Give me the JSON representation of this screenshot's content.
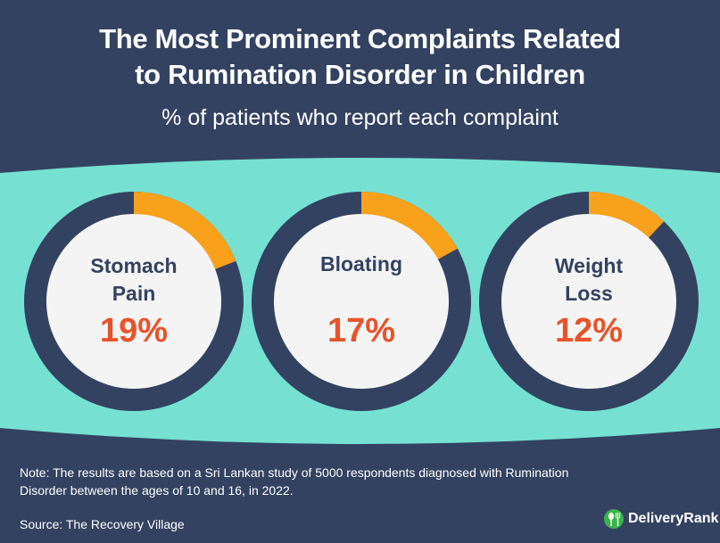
{
  "header": {
    "title_line1": "The Most Prominent Complaints Related",
    "title_line2": "to Rumination Disorder in Children",
    "subtitle": "% of patients who report each complaint"
  },
  "chart_data": {
    "type": "pie",
    "subtype": "donut",
    "categories": [
      "Stomach Pain",
      "Bloating",
      "Weight Loss"
    ],
    "values": [
      19,
      17,
      12
    ],
    "labels": [
      "19%",
      "17%",
      "12%"
    ],
    "unit": "%",
    "colors": {
      "highlight": "#f9a11b",
      "remainder": "#334260",
      "value_text": "#e8532b",
      "center": "#f4f4f4",
      "band": "#76e1d3"
    }
  },
  "footer": {
    "note": "Note: The results are based on a Sri Lankan study of 5000 respondents diagnosed with Rumination Disorder between the ages of 10 and 16, in 2022.",
    "source": "Source: The Recovery Village",
    "brand": "DeliveryRank",
    "brand_icon": "fork-spoon-icon"
  }
}
